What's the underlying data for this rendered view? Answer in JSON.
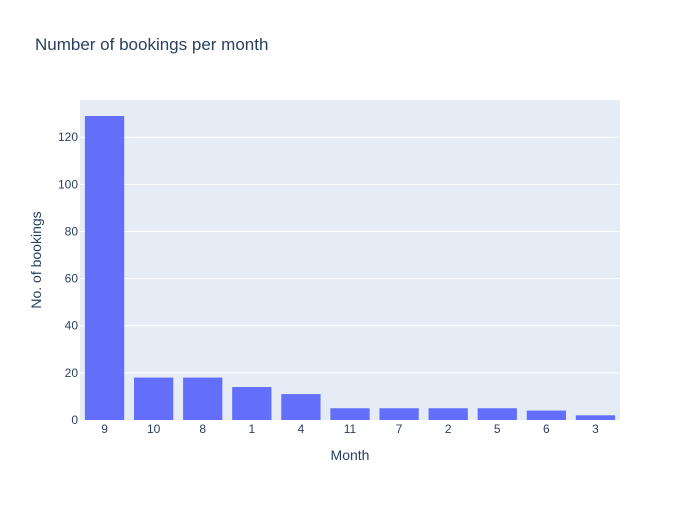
{
  "chart_data": {
    "type": "bar",
    "title": "Number of bookings per month",
    "xlabel": "Month",
    "ylabel": "No. of bookings",
    "categories": [
      "9",
      "10",
      "8",
      "1",
      "4",
      "11",
      "7",
      "2",
      "5",
      "6",
      "3"
    ],
    "values": [
      129,
      18,
      18,
      14,
      11,
      5,
      5,
      5,
      5,
      4,
      2
    ],
    "ylim": [
      0,
      135.8
    ],
    "yticks": [
      0,
      20,
      40,
      60,
      80,
      100,
      120
    ],
    "grid": true,
    "legend": "none",
    "colors": {
      "bar": "#636efa",
      "plot_background": "#e5ecf6",
      "grid": "#ffffff",
      "text": "#2a3f5f"
    }
  }
}
